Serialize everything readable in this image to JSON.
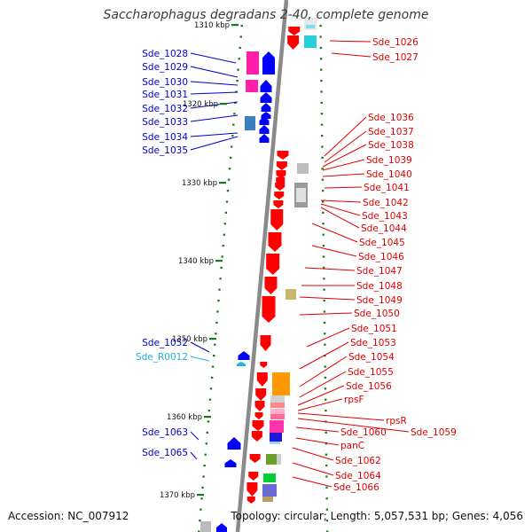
{
  "header": {
    "title": "Saccharophagus degradans 2-40, complete genome"
  },
  "footer": {
    "accession": "Accession: NC_007912",
    "topology": "Topology: circular; Length: 5,057,531 bp; Genes: 4,056"
  },
  "colors": {
    "axis": "#8a8a8a",
    "tick": "#1a7a1a",
    "forward_gene": "#ff0000",
    "reverse_gene": "#0000ff",
    "rna_gene": "#1eb4e6",
    "label_forward": "#e00000",
    "label_reverse": "#0000cc",
    "label_rna": "#22b0d8"
  },
  "scale": {
    "first_label_truncated": "1310 kbp",
    "labels": [
      "1320 kbp",
      "1330 kbp",
      "1340 kbp",
      "1350 kbp",
      "1360 kbp",
      "1370 kbp"
    ]
  },
  "genes_left": [
    "Sde_1028",
    "Sde_1029",
    "Sde_1030",
    "Sde_1031",
    "Sde_1032",
    "Sde_1033",
    "Sde_1034",
    "Sde_1035",
    "Sde_1052",
    "Sde_R0012",
    "Sde_1063",
    "Sde_1065"
  ],
  "genes_right": [
    "Sde_1026",
    "Sde_1027",
    "Sde_1036",
    "Sde_1037",
    "Sde_1038",
    "Sde_1039",
    "Sde_1040",
    "Sde_1041",
    "Sde_1042",
    "Sde_1043",
    "Sde_1044",
    "Sde_1045",
    "Sde_1046",
    "Sde_1047",
    "Sde_1048",
    "Sde_1049",
    "Sde_1050",
    "Sde_1051",
    "Sde_1053",
    "Sde_1054",
    "Sde_1055",
    "Sde_1056",
    "rpsF",
    "rpsR",
    "Sde_1059",
    "Sde_1060",
    "panC",
    "Sde_1062",
    "Sde_1064",
    "Sde_1066"
  ]
}
